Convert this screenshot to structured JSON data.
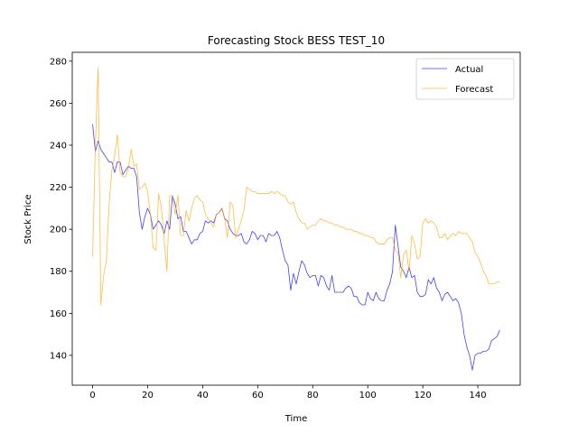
{
  "chart_data": {
    "type": "line",
    "title": "Forecasting Stock BESS TEST_10",
    "xlabel": "Time",
    "ylabel": "Stock Price",
    "xlim": [
      -7.4,
      155.4
    ],
    "ylim": [
      125.8,
      284.2
    ],
    "xticks": [
      0,
      20,
      40,
      60,
      80,
      100,
      120,
      140
    ],
    "yticks": [
      140,
      160,
      180,
      200,
      220,
      240,
      260,
      280
    ],
    "grid": false,
    "legend_position": "upper right",
    "x": [
      0,
      1,
      2,
      3,
      4,
      5,
      6,
      7,
      8,
      9,
      10,
      11,
      12,
      13,
      14,
      15,
      16,
      17,
      18,
      19,
      20,
      21,
      22,
      23,
      24,
      25,
      26,
      27,
      28,
      29,
      30,
      31,
      32,
      33,
      34,
      35,
      36,
      37,
      38,
      39,
      40,
      41,
      42,
      43,
      44,
      45,
      46,
      47,
      48,
      49,
      50,
      51,
      52,
      53,
      54,
      55,
      56,
      57,
      58,
      59,
      60,
      61,
      62,
      63,
      64,
      65,
      66,
      67,
      68,
      69,
      70,
      71,
      72,
      73,
      74,
      75,
      76,
      77,
      78,
      79,
      80,
      81,
      82,
      83,
      84,
      85,
      86,
      87,
      88,
      89,
      90,
      91,
      92,
      93,
      94,
      95,
      96,
      97,
      98,
      99,
      100,
      101,
      102,
      103,
      104,
      105,
      106,
      107,
      108,
      109,
      110,
      111,
      112,
      113,
      114,
      115,
      116,
      117,
      118,
      119,
      120,
      121,
      122,
      123,
      124,
      125,
      126,
      127,
      128,
      129,
      130,
      131,
      132,
      133,
      134,
      135,
      136,
      137,
      138,
      139,
      140,
      141,
      142,
      143,
      144,
      145,
      146,
      147,
      148
    ],
    "series": [
      {
        "name": "Actual",
        "color": "#0000ff",
        "values": [
          250,
          237,
          242,
          238,
          236,
          234,
          232,
          232,
          227,
          232,
          232,
          226,
          228,
          230,
          229,
          229,
          225,
          208,
          200,
          206,
          210,
          207,
          200,
          202,
          204,
          202,
          198,
          204,
          200,
          216,
          212,
          205,
          206,
          199,
          199,
          196,
          193,
          195,
          195,
          198,
          199,
          204,
          203,
          204,
          203,
          207,
          208,
          210,
          205,
          204,
          200,
          198,
          197,
          197,
          198,
          194,
          193,
          195,
          199,
          198,
          195,
          197,
          197,
          194,
          198,
          197,
          197,
          199,
          196,
          190,
          185,
          183,
          171,
          179,
          174,
          180,
          185,
          183,
          179,
          177,
          178,
          178,
          173,
          178,
          177,
          173,
          171,
          178,
          170,
          170,
          170,
          170,
          172,
          173,
          172,
          168,
          168,
          165,
          164,
          164,
          170,
          167,
          166,
          170,
          167,
          166,
          166,
          171,
          174,
          180,
          202,
          192,
          182,
          180,
          177,
          182,
          177,
          178,
          170,
          168,
          168,
          169,
          176,
          174,
          177,
          172,
          170,
          166,
          169,
          170,
          168,
          166,
          167,
          165,
          160,
          150,
          144,
          140,
          133,
          140,
          141,
          141,
          142,
          142,
          143,
          147,
          148,
          149,
          152
        ]
      },
      {
        "name": "Forecast",
        "color": "#ffa500",
        "values": [
          187,
          240,
          277,
          164,
          178,
          185,
          212,
          228,
          235,
          245,
          227,
          225,
          225,
          229,
          238,
          230,
          231,
          219,
          220,
          222,
          218,
          207,
          191,
          190,
          217,
          210,
          195,
          180,
          216,
          216,
          207,
          216,
          197,
          197,
          209,
          204,
          210,
          215,
          216,
          214,
          213,
          207,
          205,
          203,
          201,
          207,
          208,
          210,
          205,
          196,
          213,
          211,
          196,
          200,
          204,
          209,
          220,
          219,
          218,
          218,
          217,
          217,
          217,
          217,
          217,
          218,
          217,
          218,
          217,
          216,
          216,
          213,
          212,
          213,
          208,
          205,
          203,
          203,
          200,
          201,
          202,
          202,
          204,
          205,
          204,
          204,
          203,
          203,
          202,
          202,
          201,
          201,
          200,
          200,
          200,
          199,
          199,
          198,
          198,
          197,
          197,
          196,
          196,
          194,
          193,
          193,
          193,
          195,
          196,
          196,
          190,
          189,
          177,
          188,
          190,
          180,
          197,
          193,
          186,
          187,
          203,
          205,
          203,
          204,
          203,
          201,
          196,
          196,
          198,
          195,
          197,
          198,
          197,
          199,
          198,
          198,
          198,
          196,
          194,
          189,
          187,
          184,
          180,
          178,
          174,
          174,
          174,
          175,
          175
        ]
      }
    ]
  }
}
